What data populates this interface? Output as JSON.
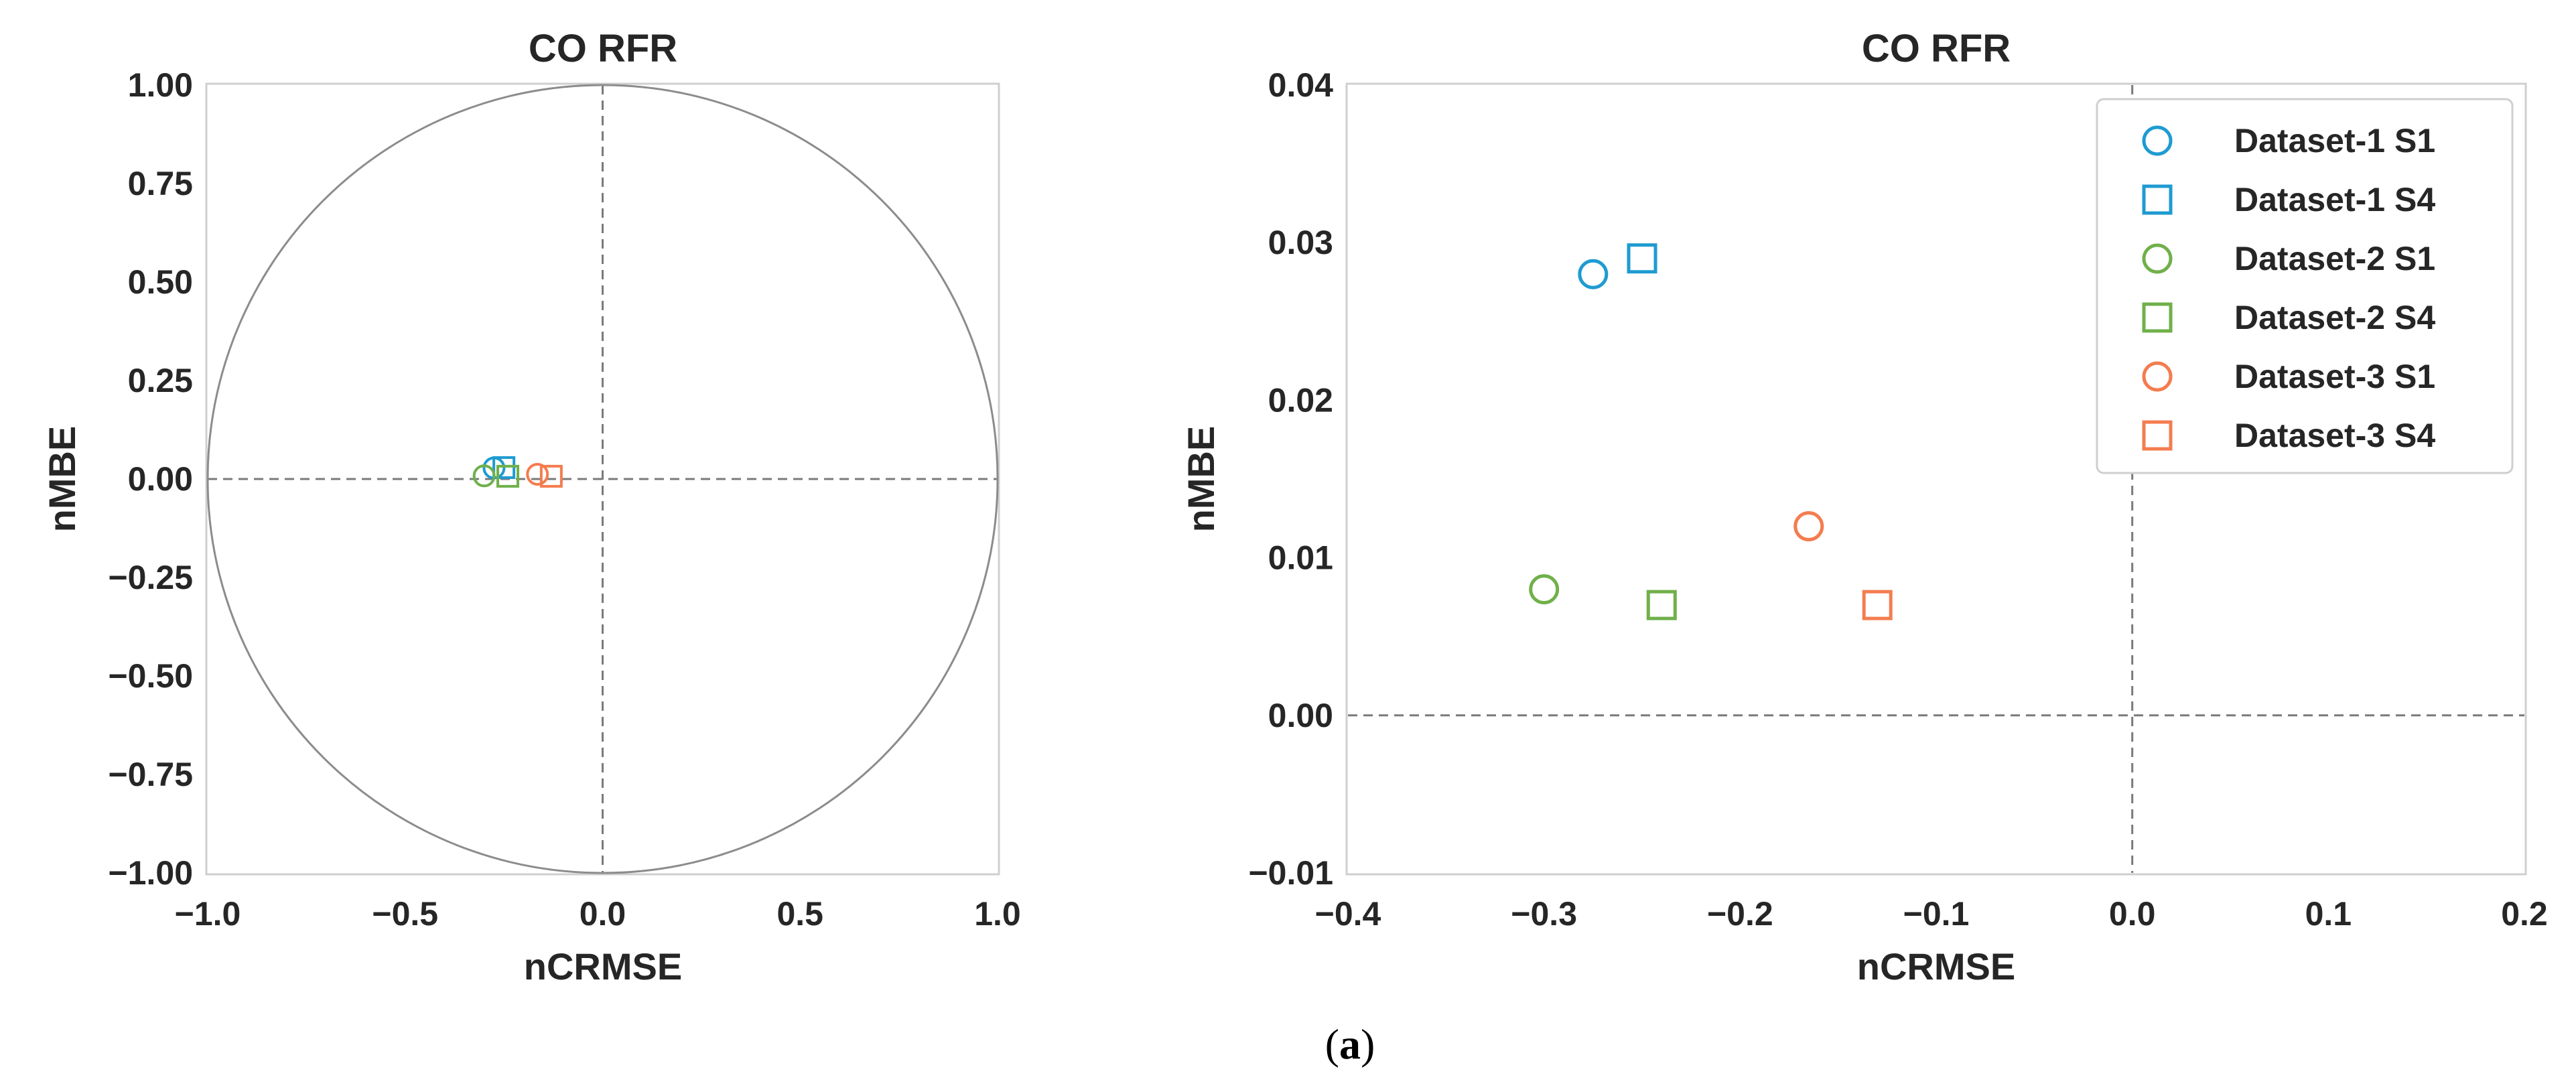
{
  "chart_data": [
    {
      "type": "scatter",
      "title": "CO RFR",
      "xlabel": "nCRMSE",
      "ylabel": "nMBE",
      "xlim": [
        -1.0,
        1.0
      ],
      "ylim": [
        -1.0,
        1.0
      ],
      "xticks": [
        "−1.0",
        "−0.5",
        "0.0",
        "0.5",
        "1.0"
      ],
      "xtick_values": [
        -1.0,
        -0.5,
        0.0,
        0.5,
        1.0
      ],
      "yticks": [
        "1.00",
        "0.75",
        "0.50",
        "0.25",
        "0.00",
        "−0.25",
        "−0.50",
        "−0.75",
        "−1.00"
      ],
      "ytick_values": [
        1.0,
        0.75,
        0.5,
        0.25,
        0.0,
        -0.25,
        -0.5,
        -0.75,
        -1.0
      ],
      "unit_circle": true,
      "grid": false,
      "series": [
        {
          "name": "Dataset-1 S1",
          "marker": "circle",
          "color": "#1f9bd1",
          "x": -0.275,
          "y": 0.028
        },
        {
          "name": "Dataset-1 S4",
          "marker": "square",
          "color": "#1f9bd1",
          "x": -0.25,
          "y": 0.029
        },
        {
          "name": "Dataset-2 S1",
          "marker": "circle",
          "color": "#70b04a",
          "x": -0.3,
          "y": 0.008
        },
        {
          "name": "Dataset-2 S4",
          "marker": "square",
          "color": "#70b04a",
          "x": -0.24,
          "y": 0.007
        },
        {
          "name": "Dataset-3 S1",
          "marker": "circle",
          "color": "#f47c4f",
          "x": -0.165,
          "y": 0.012
        },
        {
          "name": "Dataset-3 S4",
          "marker": "square",
          "color": "#f47c4f",
          "x": -0.13,
          "y": 0.007
        }
      ]
    },
    {
      "type": "scatter",
      "title": "CO RFR",
      "xlabel": "nCRMSE",
      "ylabel": "nMBE",
      "xlim": [
        -0.4,
        0.2
      ],
      "ylim": [
        -0.01,
        0.04
      ],
      "xticks": [
        "−0.4",
        "−0.3",
        "−0.2",
        "−0.1",
        "0.0",
        "0.1",
        "0.2"
      ],
      "xtick_values": [
        -0.4,
        -0.3,
        -0.2,
        -0.1,
        0.0,
        0.1,
        0.2
      ],
      "yticks": [
        "0.04",
        "0.03",
        "0.02",
        "0.01",
        "0.00",
        "−0.01"
      ],
      "ytick_values": [
        0.04,
        0.03,
        0.02,
        0.01,
        0.0,
        -0.01
      ],
      "grid": false,
      "legend": "top-right",
      "series": [
        {
          "name": "Dataset-1 S1",
          "marker": "circle",
          "color": "#1f9bd1",
          "x": -0.275,
          "y": 0.028
        },
        {
          "name": "Dataset-1 S4",
          "marker": "square",
          "color": "#1f9bd1",
          "x": -0.25,
          "y": 0.029
        },
        {
          "name": "Dataset-2 S1",
          "marker": "circle",
          "color": "#70b04a",
          "x": -0.3,
          "y": 0.008
        },
        {
          "name": "Dataset-2 S4",
          "marker": "square",
          "color": "#70b04a",
          "x": -0.24,
          "y": 0.007
        },
        {
          "name": "Dataset-3 S1",
          "marker": "circle",
          "color": "#f47c4f",
          "x": -0.165,
          "y": 0.012
        },
        {
          "name": "Dataset-3 S4",
          "marker": "square",
          "color": "#f47c4f",
          "x": -0.13,
          "y": 0.007
        }
      ]
    }
  ],
  "caption": {
    "open": "(",
    "letter": "a",
    "close": ")"
  }
}
